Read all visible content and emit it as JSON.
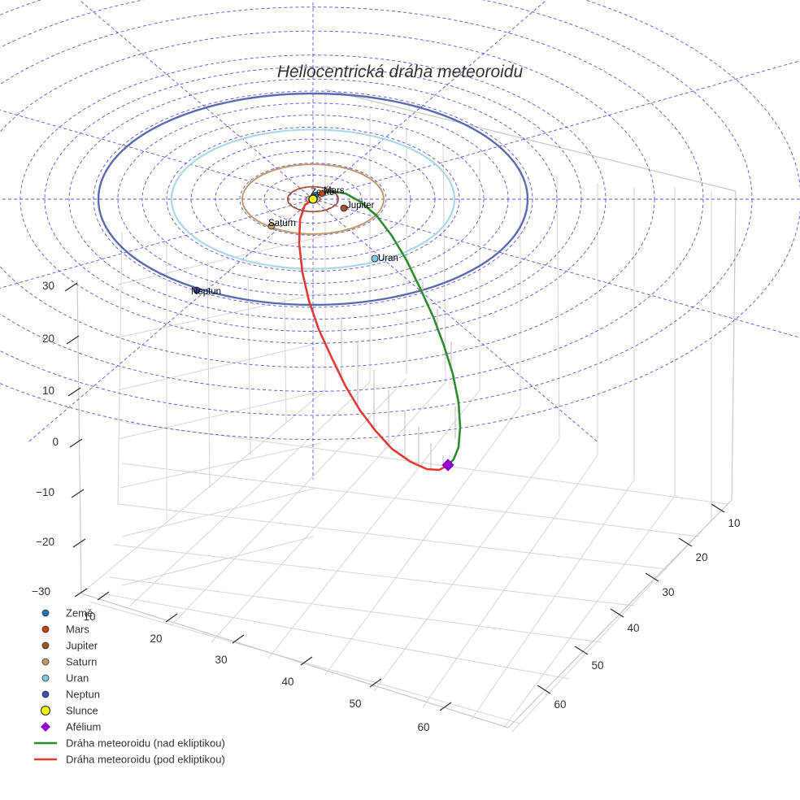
{
  "chart_data": {
    "type": "3d-line",
    "title": "Heliocentrická dráha meteoroidu",
    "axes": {
      "x": {
        "ticks": [
          "10",
          "20",
          "30",
          "40",
          "50",
          "60"
        ]
      },
      "y": {
        "ticks": [
          "10",
          "20",
          "30",
          "40",
          "50",
          "60"
        ]
      },
      "z": {
        "ticks": [
          "30",
          "20",
          "10",
          "0",
          "−10",
          "−20",
          "−30"
        ]
      }
    },
    "planets": [
      {
        "name": "Země",
        "label": "Země",
        "color": "#1f77b4"
      },
      {
        "name": "Mars",
        "label": "Mars",
        "color": "#c1440e"
      },
      {
        "name": "Jupiter",
        "label": "Jupiter",
        "color": "#a0522d"
      },
      {
        "name": "Saturn",
        "label": "Saturn",
        "color": "#c49a6c"
      },
      {
        "name": "Uran",
        "label": "Uran",
        "color": "#7ec8e3"
      },
      {
        "name": "Neptun",
        "label": "Neptun",
        "color": "#3f51b5"
      }
    ],
    "orbit_colors": {
      "Jupiter": "#a0522d",
      "Saturn": "#c49a6c",
      "Uran": "#add8e6",
      "Neptun": "#5c6bb0"
    },
    "sun": {
      "label": "Slunce",
      "color": "#ffff00"
    },
    "aphelion": {
      "label": "Afélium",
      "color": "#9400d3"
    },
    "series": [
      {
        "name": "Dráha meteoroidu (nad ekliptikou)",
        "color": "#2e8b2e"
      },
      {
        "name": "Dráha meteoroidu (pod ekliptikou)",
        "color": "#e53935"
      }
    ],
    "grid": "polar ecliptic grid (dashed blue)"
  },
  "legend": {
    "items": [
      {
        "label": "Země",
        "kind": "dot",
        "color": "#1f77b4"
      },
      {
        "label": "Mars",
        "kind": "dot",
        "color": "#c1440e"
      },
      {
        "label": "Jupiter",
        "kind": "dot",
        "color": "#a0522d"
      },
      {
        "label": "Saturn",
        "kind": "dot",
        "color": "#c49a6c"
      },
      {
        "label": "Uran",
        "kind": "dot",
        "color": "#7ec8e3"
      },
      {
        "label": "Neptun",
        "kind": "dot",
        "color": "#3f51b5"
      },
      {
        "label": "Slunce",
        "kind": "sun",
        "color": "#ffff00"
      },
      {
        "label": "Afélium",
        "kind": "diamond",
        "color": "#9400d3"
      },
      {
        "label": "Dráha meteoroidu (nad ekliptikou)",
        "kind": "line",
        "color": "#2e8b2e"
      },
      {
        "label": "Dráha meteoroidu (pod ekliptikou)",
        "kind": "line",
        "color": "#e53935"
      }
    ]
  }
}
